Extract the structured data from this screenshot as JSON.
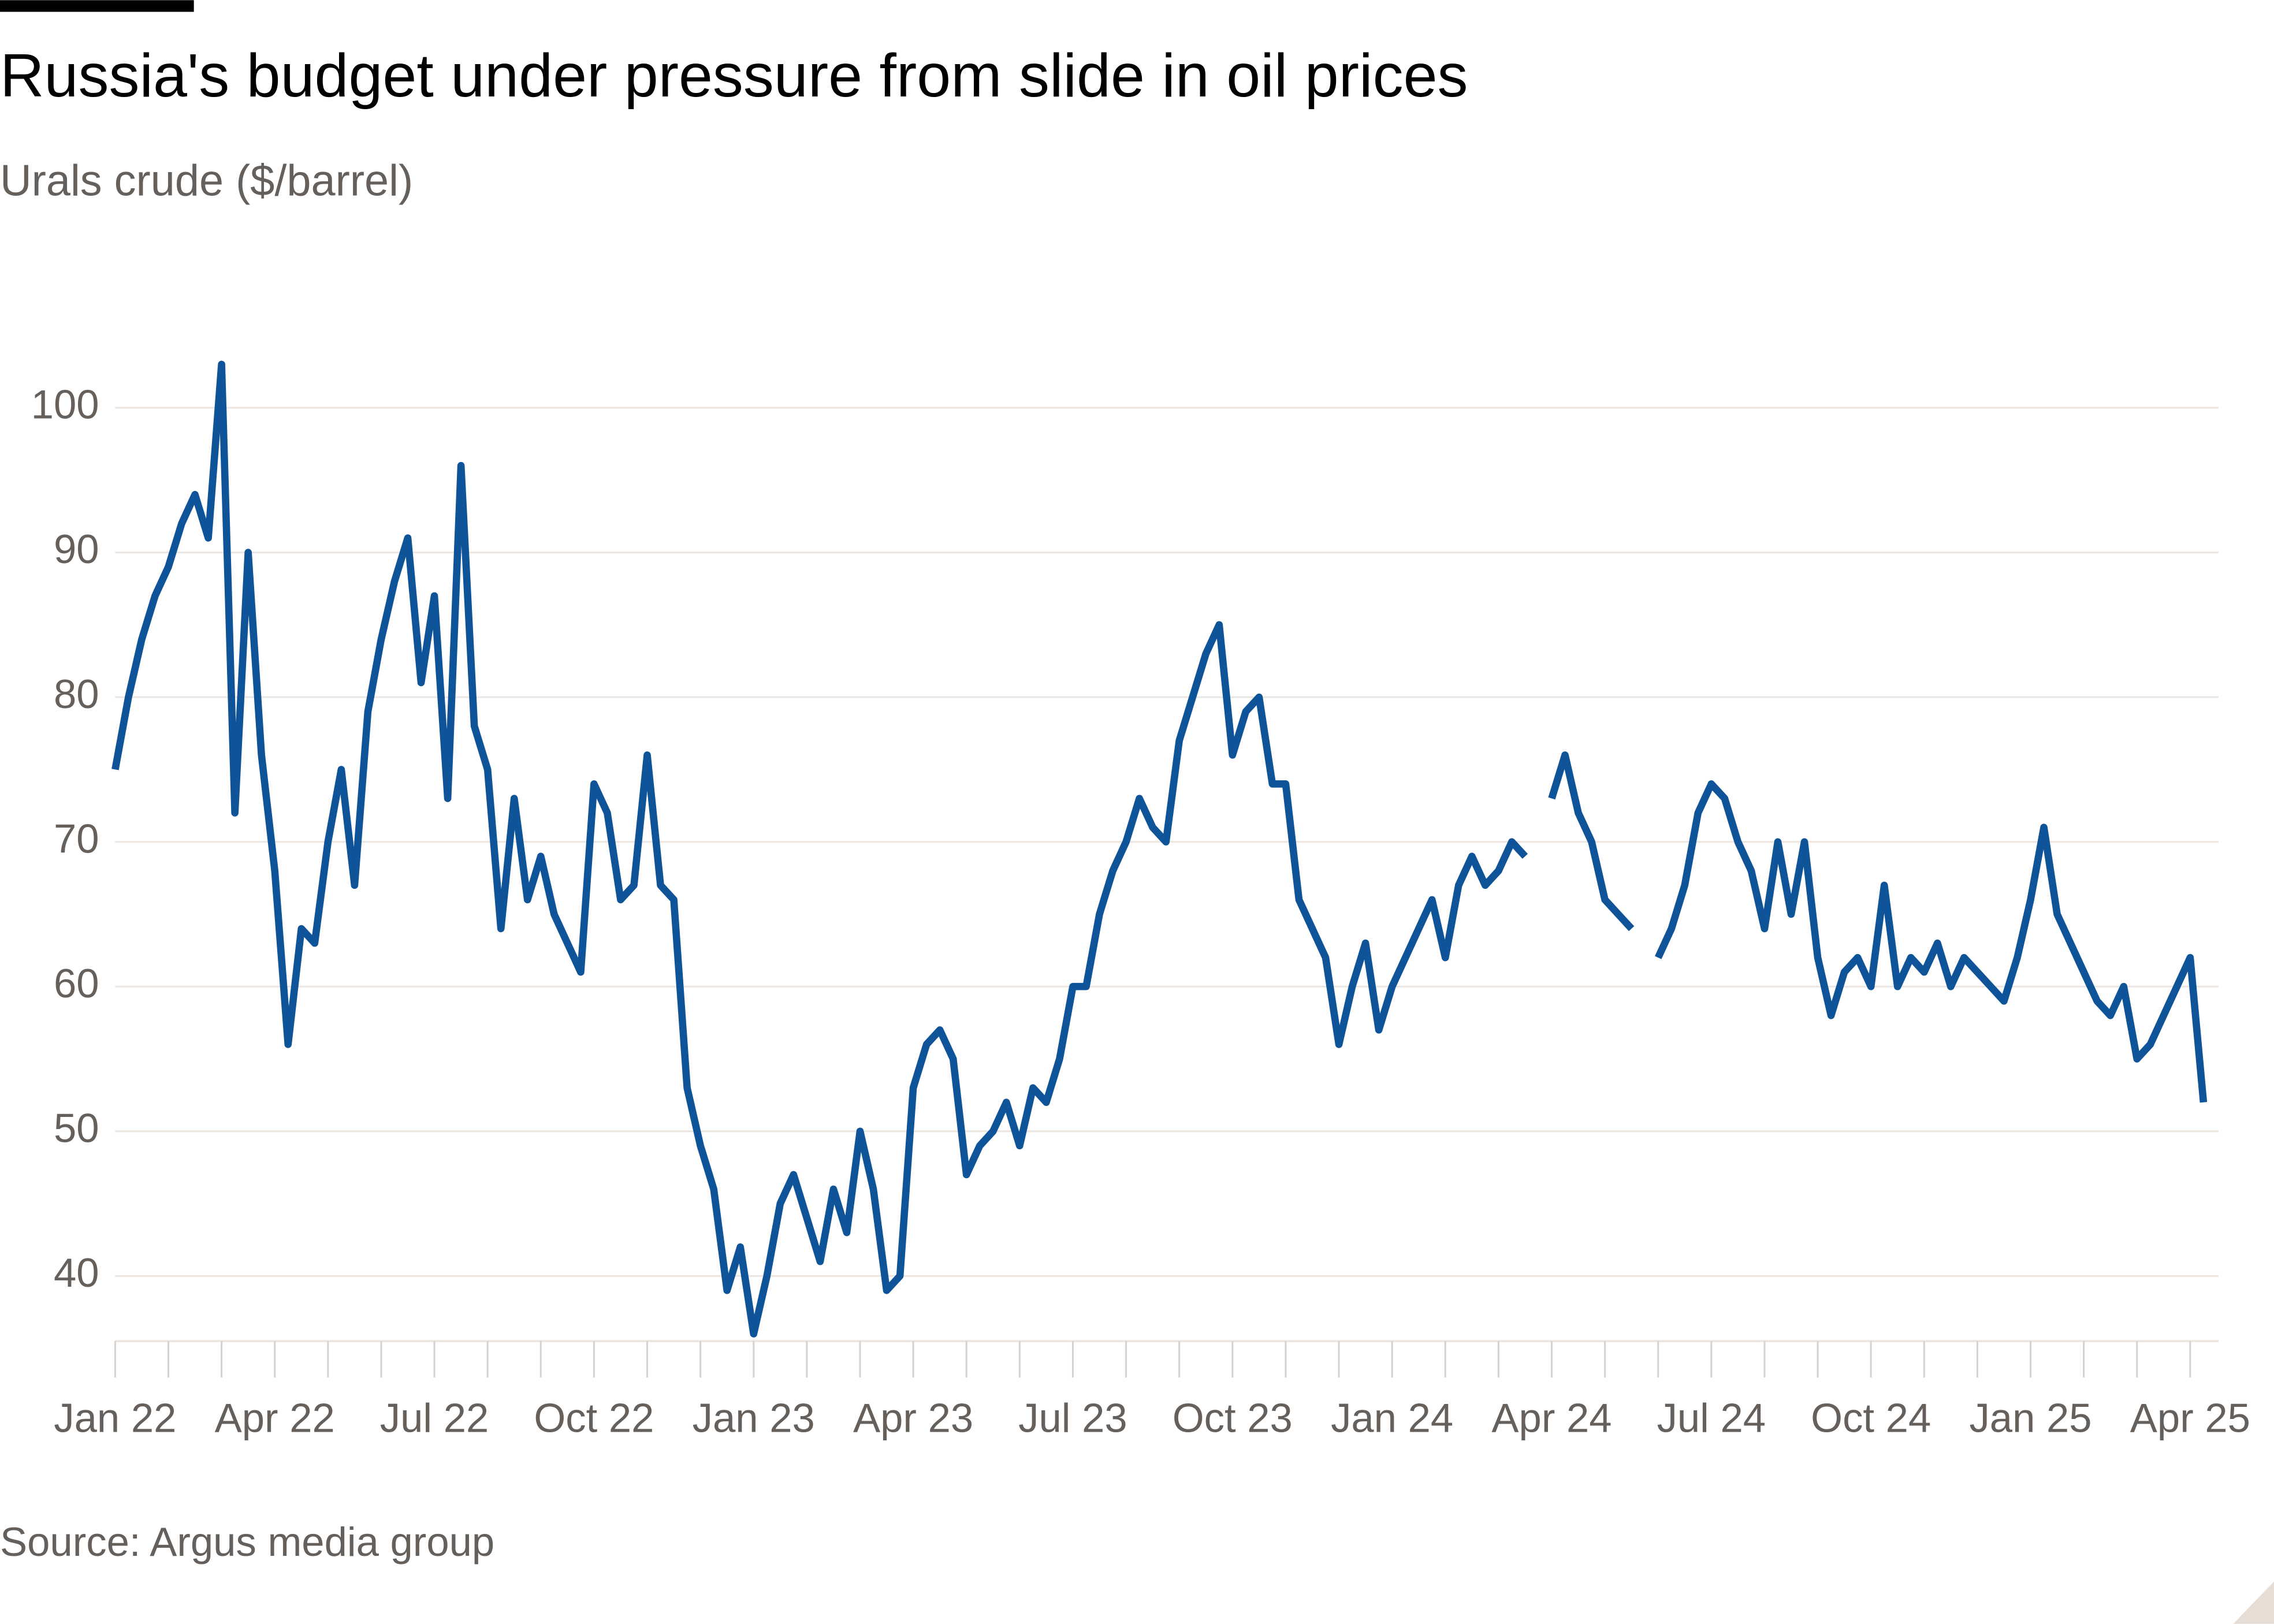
{
  "chart_data": {
    "type": "line",
    "title": "Russia's budget under pressure from slide in oil prices",
    "subtitle": "Urals crude ($/barrel)",
    "source": "Source: Argus media group",
    "categories": [
      "Jan 22",
      null,
      null,
      null,
      null,
      null,
      null,
      null,
      null,
      null,
      null,
      null,
      "Apr 22",
      null,
      null,
      null,
      null,
      null,
      null,
      null,
      null,
      null,
      null,
      null,
      "Jul 22",
      null,
      null,
      null,
      null,
      null,
      null,
      null,
      null,
      null,
      null,
      null,
      "Oct 22",
      null,
      null,
      null,
      null,
      null,
      null,
      null,
      null,
      null,
      null,
      null,
      "Jan 23",
      null,
      null,
      null,
      null,
      null,
      null,
      null,
      null,
      null,
      null,
      null,
      "Apr 23",
      null,
      null,
      null,
      null,
      null,
      null,
      null,
      null,
      null,
      null,
      null,
      "Jul 23",
      null,
      null,
      null,
      null,
      null,
      null,
      null,
      null,
      null,
      null,
      null,
      "Oct 23",
      null,
      null,
      null,
      null,
      null,
      null,
      null,
      null,
      null,
      null,
      null,
      "Jan 24",
      null,
      null,
      null,
      null,
      null,
      null,
      null,
      null,
      null,
      null,
      null,
      "Apr 24",
      null,
      null,
      null,
      null,
      null,
      null,
      null,
      null,
      null,
      null,
      null,
      "Jul 24",
      null,
      null,
      null,
      null,
      null,
      null,
      null,
      null,
      null,
      null,
      null,
      "Oct 24",
      null,
      null,
      null,
      null,
      null,
      null,
      null,
      null,
      null,
      null,
      null,
      "Jan 25",
      null,
      null,
      null,
      null,
      null,
      null,
      null,
      null,
      null,
      null,
      null,
      "Apr 25",
      null
    ],
    "series": [
      {
        "name": "Urals crude",
        "color": "#0f5499",
        "values": [
          75,
          80,
          84,
          87,
          89,
          92,
          94,
          91,
          103,
          72,
          90,
          76,
          68,
          56,
          64,
          63,
          70,
          75,
          67,
          79,
          84,
          88,
          91,
          81,
          87,
          73,
          96,
          78,
          75,
          64,
          73,
          66,
          69,
          65,
          63,
          61,
          74,
          72,
          66,
          67,
          76,
          67,
          66,
          53,
          49,
          46,
          39,
          42,
          36,
          40,
          45,
          47,
          44,
          41,
          46,
          43,
          50,
          46,
          39,
          40,
          53,
          56,
          57,
          55,
          47,
          49,
          50,
          52,
          49,
          53,
          52,
          55,
          60,
          60,
          65,
          68,
          70,
          73,
          71,
          70,
          77,
          80,
          83,
          85,
          76,
          79,
          80,
          74,
          74,
          66,
          64,
          62,
          56,
          60,
          63,
          57,
          60,
          62,
          64,
          66,
          62,
          67,
          69,
          67,
          68,
          70,
          69,
          null,
          73,
          76,
          72,
          70,
          66,
          65,
          64,
          null,
          62,
          64,
          67,
          72,
          74,
          73,
          70,
          68,
          64,
          70,
          65,
          70,
          62,
          58,
          61,
          62,
          60,
          67,
          60,
          62,
          61,
          63,
          60,
          62,
          61,
          60,
          59,
          62,
          66,
          71,
          65,
          63,
          61,
          59,
          58,
          60,
          55,
          56,
          58,
          60,
          62,
          52
        ]
      }
    ],
    "ylim": [
      35.5,
      105
    ],
    "yticks": [
      40,
      50,
      60,
      70,
      80,
      90,
      100
    ],
    "grid": true
  }
}
